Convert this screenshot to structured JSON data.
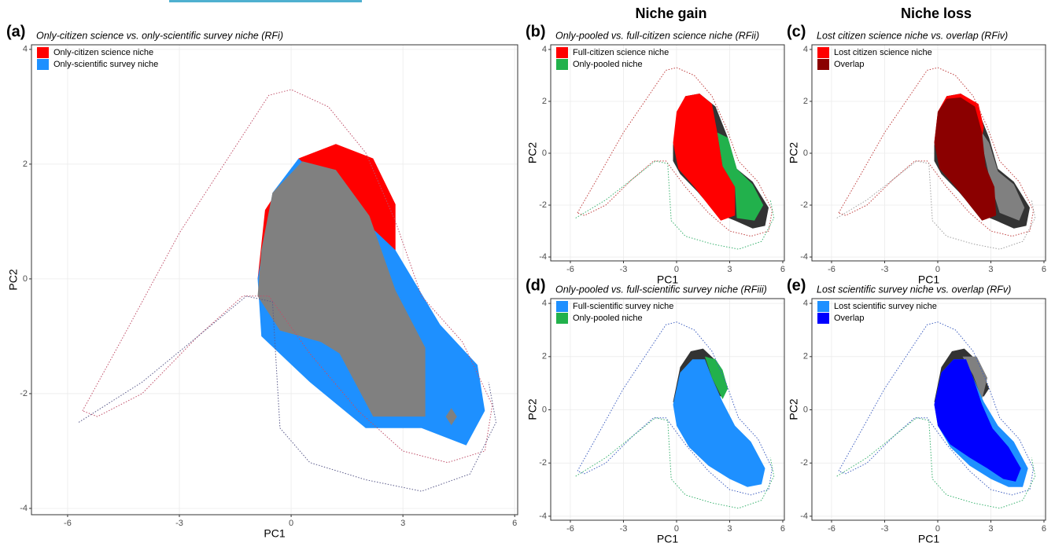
{
  "headers": [
    "Niche gain",
    "Niche loss"
  ],
  "chart_data": [
    {
      "type": "area",
      "label": "(a)",
      "title": "Only-citizen science vs. only-scientific survey niche (RFi)",
      "xlabel": "PC1",
      "ylabel": "PC2",
      "xlim": [
        -6.97,
        6.08
      ],
      "ylim": [
        -4.11,
        4.08
      ],
      "xticks": [
        -6,
        -3,
        0,
        3,
        6
      ],
      "yticks": [
        -4,
        -2,
        0,
        2,
        4
      ],
      "grid": true,
      "legend": "top-left",
      "background": [],
      "series": [
        {
          "name": "Only-citizen science niche",
          "color": "#ff0000",
          "x": [
            -0.9,
            -0.7,
            0.2,
            1.2,
            2.2,
            2.8,
            2.8,
            1.5,
            -0.5
          ],
          "y": [
            0,
            1.2,
            2.1,
            2.35,
            2.1,
            1.3,
            0.4,
            0.5,
            -0.5
          ]
        },
        {
          "name": "Only-scientific survey niche",
          "color": "#1e90ff",
          "x": [
            0.2,
            1.5,
            2.8,
            4,
            5,
            5.2,
            4.7,
            3.5,
            2,
            0.5,
            -0.8,
            -0.9,
            -0.5
          ],
          "y": [
            2.1,
            1.3,
            0.5,
            -0.8,
            -1.5,
            -2.3,
            -2.9,
            -2.6,
            -2.6,
            -1.8,
            -1,
            0,
            1.5
          ]
        }
      ],
      "overlap": [
        {
          "color": "#808080",
          "x": [
            -0.8,
            -0.5,
            0.3,
            1.2,
            2.1,
            2.8,
            3.6,
            3.6,
            2.2,
            1.3,
            0.8,
            -0.3,
            -0.9
          ],
          "y": [
            0.5,
            1.5,
            2.05,
            1.9,
            1.1,
            -0.2,
            -1.2,
            -2.4,
            -2.4,
            -1.3,
            -1.1,
            -0.9,
            -0.3
          ]
        },
        {
          "color": "#808080",
          "x": [
            4.15,
            4.3,
            4.45,
            4.3
          ],
          "y": [
            -2.4,
            -2.25,
            -2.4,
            -2.55
          ]
        }
      ],
      "outlines": [
        {
          "color": "#c0506a",
          "x": [
            -5.6,
            -4.5,
            -3,
            -1.8,
            -0.6,
            0,
            1,
            2,
            2.8,
            3.5,
            4.6,
            5.4,
            5.2,
            4.2,
            3,
            1.8,
            0.5,
            -0.6,
            -1.3,
            -2.5,
            -4,
            -5.2,
            -5.6
          ],
          "y": [
            -2.3,
            -1,
            0.8,
            2,
            3.2,
            3.3,
            3,
            2.2,
            1,
            -0.3,
            -1.1,
            -2.2,
            -3,
            -3.2,
            -3,
            -2.3,
            -1.3,
            -0.3,
            -0.3,
            -1,
            -2,
            -2.4,
            -2.3
          ]
        },
        {
          "color": "#5a5a8a",
          "x": [
            -5.7,
            -4,
            -2.5,
            -1.2,
            -0.5,
            -0.3,
            0.5,
            2,
            3.5,
            4.8,
            5.5,
            5.3
          ],
          "y": [
            -2.5,
            -1.8,
            -1,
            -0.3,
            -0.4,
            -2.6,
            -3.2,
            -3.5,
            -3.7,
            -3.4,
            -2.5,
            -1.8
          ]
        }
      ]
    },
    {
      "type": "area",
      "label": "(b)",
      "title": "Only-pooled vs. full-citizen science niche (RFii)",
      "xlabel": "PC1",
      "ylabel": "PC2",
      "xlim": [
        -7.11,
        6.09
      ],
      "ylim": [
        -4.15,
        4.18
      ],
      "xticks": [
        -6,
        -3,
        0,
        3,
        6
      ],
      "yticks": [
        -4,
        -2,
        0,
        2,
        4
      ],
      "grid": true,
      "legend": "top-left",
      "background": [
        {
          "color": "#333333",
          "x": [
            -0.2,
            0,
            0.5,
            1.3,
            2.2,
            2.9,
            3.4,
            4.3,
            5.2,
            5,
            4.3,
            3.3,
            2.2,
            1.2,
            0.2,
            -0.2
          ],
          "y": [
            0.3,
            1.5,
            2.2,
            2.3,
            1.8,
            0.6,
            -0.6,
            -1.1,
            -2.1,
            -2.8,
            -2.9,
            -2.6,
            -2.3,
            -1.5,
            -0.8,
            -0.3
          ]
        }
      ],
      "series": [
        {
          "name": "Full-citizen science niche",
          "color": "#ff0000",
          "x": [
            -0.2,
            0,
            0.5,
            1.3,
            2,
            2.3,
            2.6,
            3.3,
            3.3,
            2.5,
            1.8,
            1,
            0.1
          ],
          "y": [
            0.4,
            1.6,
            2.2,
            2.3,
            1.9,
            0.8,
            -0.5,
            -1.3,
            -2.4,
            -2.6,
            -2,
            -1.3,
            -0.6
          ]
        },
        {
          "name": "Only-pooled niche",
          "color": "#22b14c",
          "x": [
            2.3,
            2.9,
            3.4,
            4.3,
            4.9,
            4.4,
            3.4,
            3.3,
            2.6
          ],
          "y": [
            0.8,
            0.6,
            -0.6,
            -1.2,
            -2,
            -2.6,
            -2.5,
            -1.3,
            -0.5
          ]
        }
      ],
      "overlap": [],
      "outlines": [
        {
          "color": "#c04040",
          "x": [
            -5.6,
            -4.5,
            -3,
            -1.8,
            -0.6,
            0,
            1,
            2,
            2.8,
            3.5,
            4.6,
            5.4,
            5.2,
            4.2,
            3,
            1.8,
            0.5,
            -0.6,
            -1.3,
            -2.5,
            -4,
            -5.2,
            -5.6
          ],
          "y": [
            -2.3,
            -1,
            0.8,
            2,
            3.2,
            3.3,
            3,
            2.2,
            1,
            -0.3,
            -1.1,
            -2.2,
            -3,
            -3.2,
            -3,
            -2.3,
            -1.3,
            -0.3,
            -0.3,
            -1,
            -2,
            -2.4,
            -2.3
          ]
        },
        {
          "color": "#3cb371",
          "x": [
            -5.7,
            -4,
            -2.5,
            -1.2,
            -0.5,
            -0.3,
            0.5,
            2,
            3.5,
            4.8,
            5.5,
            5.3
          ],
          "y": [
            -2.5,
            -1.8,
            -1,
            -0.3,
            -0.4,
            -2.6,
            -3.2,
            -3.5,
            -3.7,
            -3.4,
            -2.5,
            -1.8
          ]
        }
      ]
    },
    {
      "type": "area",
      "label": "(c)",
      "title": "Lost citizen science niche vs. overlap (RFiv)",
      "xlabel": "PC1",
      "ylabel": "PC2",
      "xlim": [
        -7.11,
        6.09
      ],
      "ylim": [
        -4.15,
        4.18
      ],
      "xticks": [
        -6,
        -3,
        0,
        3,
        6
      ],
      "yticks": [
        -4,
        -2,
        0,
        2,
        4
      ],
      "grid": true,
      "legend": "top-left",
      "background": [
        {
          "color": "#333333",
          "x": [
            -0.2,
            0,
            0.5,
            1.3,
            2.2,
            2.9,
            3.4,
            4.3,
            5.2,
            5,
            4.3,
            3.3,
            2.2,
            1.2,
            0.2,
            -0.2
          ],
          "y": [
            0.3,
            1.5,
            2.2,
            2.3,
            1.8,
            0.6,
            -0.6,
            -1.1,
            -2.1,
            -2.8,
            -2.9,
            -2.6,
            -2.3,
            -1.5,
            -0.8,
            -0.3
          ]
        },
        {
          "color": "#808080",
          "x": [
            2.3,
            2.9,
            3.4,
            4.3,
            4.9,
            4.6,
            3.5,
            3
          ],
          "y": [
            1,
            0.4,
            -0.7,
            -1.2,
            -2.1,
            -2.6,
            -2.3,
            -1.2
          ]
        }
      ],
      "series": [
        {
          "name": "Lost citizen science niche",
          "color": "#ff0000",
          "x": [
            -0.2,
            0,
            0.5,
            1.3,
            2.3,
            2.6,
            2.2,
            1.5,
            0.3
          ],
          "y": [
            0.4,
            1.6,
            2.2,
            2.3,
            1.9,
            1,
            -0.5,
            0,
            0
          ]
        },
        {
          "name": "Overlap",
          "color": "#8b0000",
          "x": [
            -0.2,
            0,
            0.5,
            1.3,
            2.1,
            2.5,
            2.7,
            3.2,
            3.3,
            2.5,
            1.8,
            1,
            0.1
          ],
          "y": [
            0.4,
            1.6,
            2.1,
            2.15,
            1.8,
            0.8,
            -0.5,
            -1.3,
            -2.4,
            -2.6,
            -2,
            -1.3,
            -0.6
          ]
        }
      ],
      "overlap": [],
      "outlines": [
        {
          "color": "#c04040",
          "x": [
            -5.6,
            -4.5,
            -3,
            -1.8,
            -0.6,
            0,
            1,
            2,
            2.8,
            3.5,
            4.6,
            5.4,
            5.2,
            4.2,
            3,
            1.8,
            0.5,
            -0.6,
            -1.3,
            -2.5,
            -4,
            -5.2,
            -5.6
          ],
          "y": [
            -2.3,
            -1,
            0.8,
            2,
            3.2,
            3.3,
            3,
            2.2,
            1,
            -0.3,
            -1.1,
            -2.2,
            -3,
            -3.2,
            -3,
            -2.3,
            -1.3,
            -0.3,
            -0.3,
            -1,
            -2,
            -2.4,
            -2.3
          ]
        },
        {
          "color": "#a0a0a0",
          "x": [
            -5.7,
            -4,
            -2.5,
            -1.2,
            -0.5,
            -0.3,
            0.5,
            2,
            3.5,
            4.8,
            5.5,
            5.3
          ],
          "y": [
            -2.5,
            -1.8,
            -1,
            -0.3,
            -0.4,
            -2.6,
            -3.2,
            -3.5,
            -3.7,
            -3.4,
            -2.5,
            -1.8
          ]
        }
      ]
    },
    {
      "type": "area",
      "label": "(d)",
      "title": "Only-pooled vs. full-scientific survey niche (RFiii)",
      "xlabel": "PC1",
      "ylabel": "PC2",
      "xlim": [
        -7.11,
        6.09
      ],
      "ylim": [
        -4.15,
        4.18
      ],
      "xticks": [
        -6,
        -3,
        0,
        3,
        6
      ],
      "yticks": [
        -4,
        -2,
        0,
        2,
        4
      ],
      "grid": true,
      "legend": "top-left",
      "background": [
        {
          "color": "#333333",
          "x": [
            -0.2,
            0.2,
            0.8,
            1.5,
            2.3,
            2.9,
            2.6,
            1.5,
            0.2
          ],
          "y": [
            0.3,
            1.6,
            2.2,
            2.3,
            1.8,
            0.8,
            0.5,
            0.6,
            0
          ]
        }
      ],
      "series": [
        {
          "name": "Full-scientific survey niche",
          "color": "#1e90ff",
          "x": [
            -0.2,
            0.2,
            0.9,
            1.6,
            2,
            2.6,
            3.3,
            4.2,
            5,
            4.8,
            4,
            3,
            1.8,
            0.7,
            0
          ],
          "y": [
            0.2,
            1.4,
            1.9,
            1.9,
            1.2,
            0.3,
            -0.6,
            -1.2,
            -2.2,
            -2.8,
            -2.9,
            -2.6,
            -2.1,
            -1.4,
            -0.6
          ]
        },
        {
          "name": "Only-pooled niche",
          "color": "#22b14c",
          "x": [
            1.6,
            2.2,
            2.6,
            2.9,
            2.6,
            2
          ],
          "y": [
            2,
            1.9,
            1.5,
            0.8,
            0.4,
            1.2
          ]
        }
      ],
      "overlap": [],
      "outlines": [
        {
          "color": "#4060c0",
          "x": [
            -5.6,
            -4.5,
            -3,
            -1.8,
            -0.6,
            0,
            1,
            2,
            2.8,
            3.5,
            4.6,
            5.4,
            5.2,
            4.2,
            3,
            1.8,
            0.5,
            -0.6,
            -1.3,
            -2.5,
            -4,
            -5.2,
            -5.6
          ],
          "y": [
            -2.3,
            -1,
            0.8,
            2,
            3.2,
            3.3,
            3,
            2.2,
            1,
            -0.3,
            -1.1,
            -2.2,
            -3,
            -3.2,
            -3,
            -2.3,
            -1.3,
            -0.3,
            -0.3,
            -1,
            -2,
            -2.4,
            -2.3
          ]
        },
        {
          "color": "#3cb371",
          "x": [
            -5.7,
            -4,
            -2.5,
            -1.2,
            -0.5,
            -0.3,
            0.5,
            2,
            3.5,
            4.8,
            5.5,
            5.3
          ],
          "y": [
            -2.5,
            -1.8,
            -1,
            -0.3,
            -0.4,
            -2.6,
            -3.2,
            -3.5,
            -3.7,
            -3.4,
            -2.5,
            -1.8
          ]
        }
      ]
    },
    {
      "type": "area",
      "label": "(e)",
      "title": "Lost scientific survey niche vs. overlap (RFv)",
      "xlabel": "PC1",
      "ylabel": "PC2",
      "xlim": [
        -7.11,
        6.09
      ],
      "ylim": [
        -4.15,
        4.18
      ],
      "xticks": [
        -6,
        -3,
        0,
        3,
        6
      ],
      "yticks": [
        -4,
        -2,
        0,
        2,
        4
      ],
      "grid": true,
      "legend": "top-left",
      "background": [
        {
          "color": "#333333",
          "x": [
            -0.2,
            0.2,
            0.8,
            1.5,
            2.3,
            2.9,
            2.6,
            1.5,
            0.2
          ],
          "y": [
            0.3,
            1.6,
            2.2,
            2.3,
            1.8,
            0.8,
            0.5,
            0.6,
            0
          ]
        },
        {
          "color": "#808080",
          "x": [
            1.4,
            2.2,
            2.8,
            2.5,
            2
          ],
          "y": [
            2,
            2,
            1.2,
            0.4,
            1.3
          ]
        }
      ],
      "series": [
        {
          "name": "Lost scientific survey niche",
          "color": "#1e90ff",
          "x": [
            -0.2,
            0.2,
            0.9,
            1.6,
            2,
            2.6,
            3.4,
            4.3,
            5.1,
            4.8,
            4,
            3,
            1.8,
            0.7,
            0
          ],
          "y": [
            0.2,
            1.4,
            1.9,
            1.9,
            1.2,
            0.3,
            -0.6,
            -1.2,
            -2.2,
            -2.9,
            -2.9,
            -2.6,
            -2.1,
            -1.4,
            -0.6
          ]
        },
        {
          "name": "Overlap",
          "color": "#0000ff",
          "x": [
            -0.2,
            0.2,
            0.9,
            1.6,
            2,
            2.5,
            3.1,
            4,
            4.7,
            4.4,
            3.7,
            2.8,
            1.8,
            0.7,
            0
          ],
          "y": [
            0.2,
            1.4,
            1.9,
            1.9,
            1.2,
            0.2,
            -0.7,
            -1.4,
            -2.2,
            -2.7,
            -2.6,
            -2.2,
            -1.8,
            -1.3,
            -0.6
          ]
        }
      ],
      "overlap": [],
      "outlines": [
        {
          "color": "#4060c0",
          "x": [
            -5.6,
            -4.5,
            -3,
            -1.8,
            -0.6,
            0,
            1,
            2,
            2.8,
            3.5,
            4.6,
            5.4,
            5.2,
            4.2,
            3,
            1.8,
            0.5,
            -0.6,
            -1.3,
            -2.5,
            -4,
            -5.2,
            -5.6
          ],
          "y": [
            -2.3,
            -1,
            0.8,
            2,
            3.2,
            3.3,
            3,
            2.2,
            1,
            -0.3,
            -1.1,
            -2.2,
            -3,
            -3.2,
            -3,
            -2.3,
            -1.3,
            -0.3,
            -0.3,
            -1,
            -2,
            -2.4,
            -2.3
          ]
        },
        {
          "color": "#3cb371",
          "x": [
            -5.7,
            -4,
            -2.5,
            -1.2,
            -0.5,
            -0.3,
            0.5,
            2,
            3.5,
            4.8,
            5.5,
            5.3
          ],
          "y": [
            -2.5,
            -1.8,
            -1,
            -0.3,
            -0.4,
            -2.6,
            -3.2,
            -3.5,
            -3.7,
            -3.4,
            -2.5,
            -1.8
          ]
        }
      ]
    }
  ]
}
